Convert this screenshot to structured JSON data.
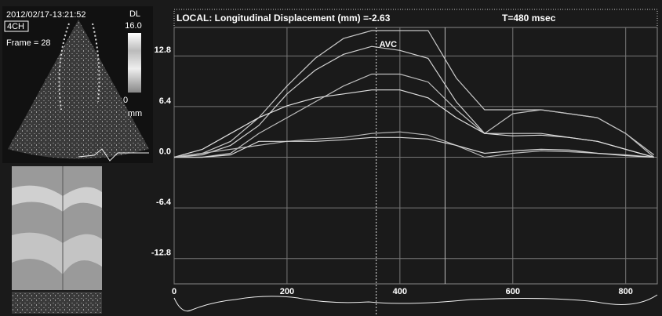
{
  "header": {
    "timestamp": "2012/02/17-13:21:52",
    "view": "4CH",
    "frame": "Frame = 28",
    "scale_label": "DL",
    "scale_max": "16.0",
    "scale_min": "0",
    "scale_unit": "mm"
  },
  "chart_data": {
    "type": "line",
    "title": "LOCAL: Longitudinal Displacement (mm) =-2.63",
    "time_label": "T=480 msec",
    "annotations": [
      {
        "text": "AVC",
        "x": 358
      }
    ],
    "cursor_x": 480,
    "x": [
      0,
      50,
      100,
      150,
      200,
      250,
      300,
      350,
      400,
      450,
      500,
      550,
      600,
      650,
      700,
      750,
      800,
      850
    ],
    "series": [
      {
        "color": "#c8c8c8",
        "values": [
          0,
          0.5,
          2,
          5,
          9,
          12.5,
          15,
          16,
          16,
          16,
          10,
          6,
          6,
          6,
          5.5,
          5,
          3,
          0.3
        ]
      },
      {
        "color": "#d0d0d0",
        "values": [
          0,
          0.3,
          1.5,
          4,
          8,
          11,
          13,
          14,
          13.5,
          12.5,
          7,
          3,
          3,
          3,
          2.5,
          2,
          1,
          0
        ]
      },
      {
        "color": "#bfbfbf",
        "values": [
          0,
          0,
          0.5,
          3,
          5,
          7,
          9,
          10.5,
          10.5,
          9.5,
          6,
          3,
          5.5,
          6,
          5.5,
          5,
          3,
          0
        ]
      },
      {
        "color": "#e0e0e0",
        "values": [
          0,
          1,
          3,
          5,
          6.5,
          7.5,
          8,
          8.5,
          8.5,
          7.5,
          5,
          3,
          2.7,
          2.8,
          2.5,
          2,
          1,
          0
        ]
      },
      {
        "color": "#b8b8b8",
        "values": [
          0,
          0.5,
          1,
          1.5,
          2,
          2.3,
          2.5,
          3,
          3.2,
          2.8,
          1.5,
          0,
          0.5,
          0.8,
          0.7,
          0.5,
          0.3,
          0
        ]
      },
      {
        "color": "#d8d8d8",
        "values": [
          0,
          0,
          0.3,
          2,
          2,
          2,
          2.2,
          2.5,
          2.5,
          2.3,
          1.5,
          0.5,
          0.8,
          1,
          0.9,
          0.5,
          0.2,
          0
        ]
      }
    ],
    "xlim": [
      0,
      856
    ],
    "ylim": [
      -16,
      16.4
    ],
    "xticks": [
      0,
      200,
      400,
      600,
      800
    ],
    "yticks": [
      12.8,
      6.4,
      {
        "value": 0,
        "label": "0.0"
      },
      -6.4,
      -12.8
    ],
    "grid": true
  }
}
